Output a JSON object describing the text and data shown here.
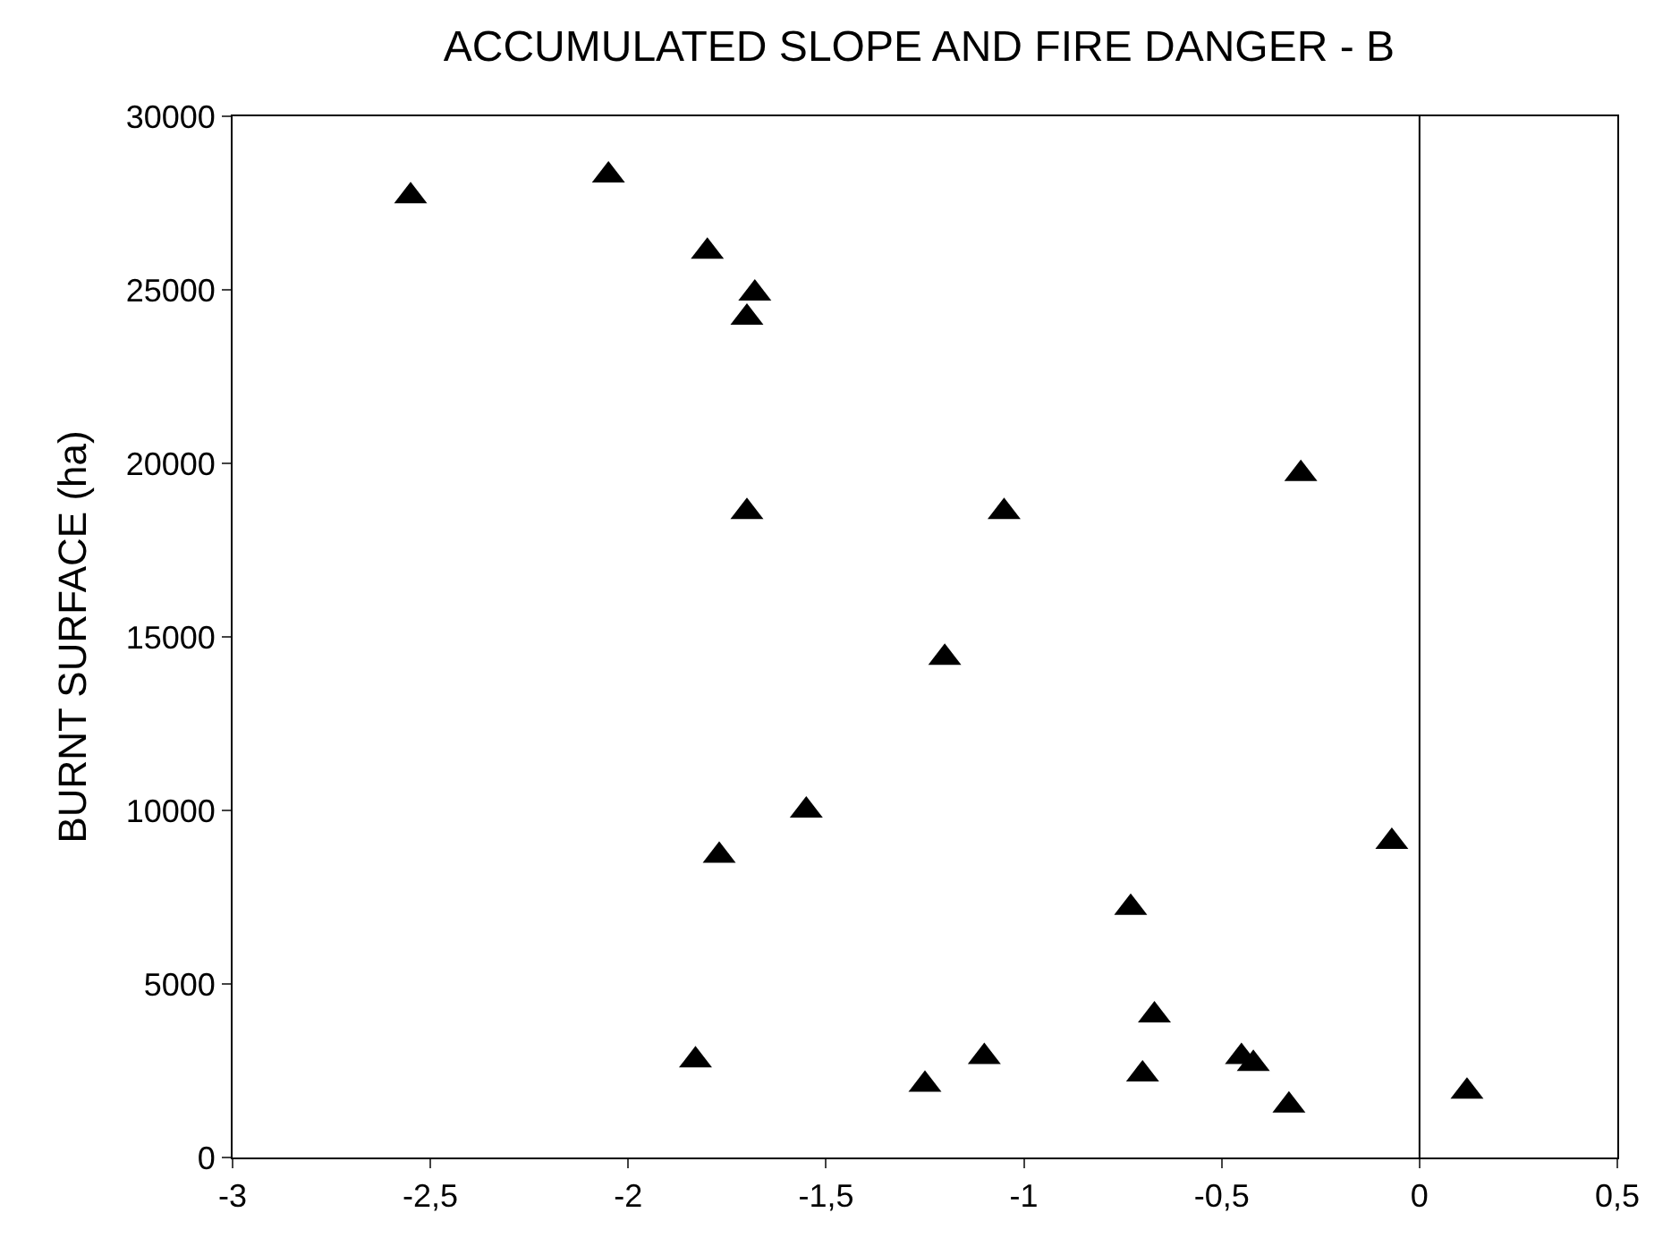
{
  "chart_data": {
    "type": "scatter",
    "title": "ACCUMULATED SLOPE AND FIRE DANGER - B",
    "ylabel": "BURNT SURFACE (ha)",
    "x": [
      -2.55,
      -2.05,
      -1.8,
      -1.68,
      -1.7,
      -1.7,
      -1.05,
      -0.3,
      -1.2,
      -1.55,
      -1.77,
      -0.07,
      -0.73,
      -0.67,
      -1.83,
      -1.1,
      -1.25,
      -0.7,
      -0.45,
      -0.42,
      -0.33,
      0.12
    ],
    "series": [
      {
        "color": "#000000",
        "values": [
          27700,
          28300,
          26100,
          24900,
          24200,
          18600,
          18600,
          19700,
          14400,
          10000,
          8700,
          9100,
          7200,
          4100,
          2800,
          2900,
          2100,
          2400,
          2900,
          2700,
          1500,
          1900
        ]
      }
    ],
    "marker": "triangle",
    "xlim": [
      -3,
      0.5
    ],
    "xticks": [
      -3,
      {
        "value": -2.5,
        "label": "-2,5"
      },
      -2,
      {
        "value": -1.5,
        "label": "-1,5"
      },
      -1,
      {
        "value": -0.5,
        "label": "-0,5"
      },
      0,
      {
        "value": 0.5,
        "label": "0,5"
      }
    ],
    "ylim": [
      0,
      30000
    ],
    "yticks": [
      0,
      5000,
      10000,
      15000,
      20000,
      25000,
      30000
    ],
    "ref_lines": [
      {
        "axis": "x",
        "value": 0,
        "color": "#000000",
        "line_style": "solid"
      }
    ]
  }
}
